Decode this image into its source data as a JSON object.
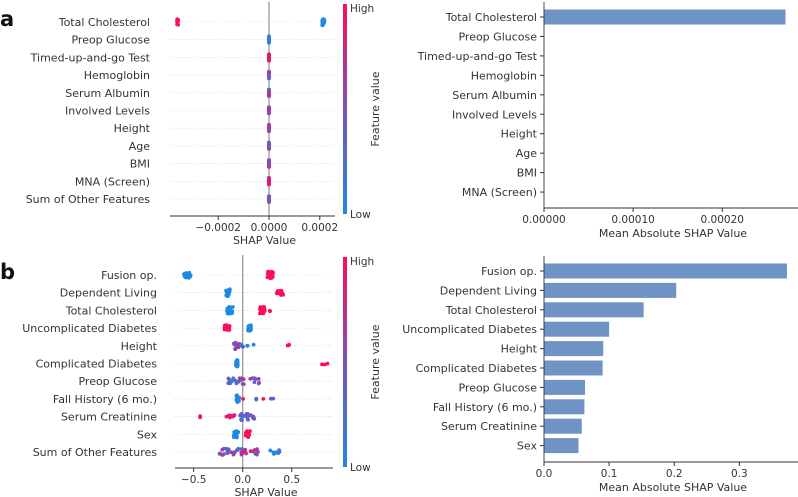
{
  "colors": {
    "high": "#ff0d57",
    "low": "#1e88e5",
    "bar": "#6f93c5",
    "zero_line": "#999999",
    "grid": "#cccccc"
  },
  "chart_data": [
    {
      "panel": "a",
      "type": "scatter",
      "subtype": "beeswarm",
      "xlabel": "SHAP Value",
      "xticks": [
        -0.0002,
        0.0,
        0.0002
      ],
      "xtick_labels": [
        "−0.0002",
        "0.0000",
        "0.0002"
      ],
      "xlim": [
        -0.00039,
        0.00026
      ],
      "colorbar": {
        "label": "Feature value",
        "high": "High",
        "low": "Low"
      },
      "features": [
        {
          "name": "Total Cholesterol",
          "clusters": [
            {
              "x": -0.00036,
              "spread": 5e-06,
              "n": 14,
              "level": 1
            },
            {
              "x": 0.000214,
              "spread": 1e-05,
              "n": 22,
              "level": 0
            }
          ]
        },
        {
          "name": "Preop Glucose",
          "clusters": [
            {
              "x": 0,
              "spread": 0,
              "n": 20,
              "level": 0.2
            }
          ]
        },
        {
          "name": "Timed-up-and-go Test",
          "clusters": [
            {
              "x": 0,
              "spread": 0,
              "n": 20,
              "level": 0.9
            }
          ]
        },
        {
          "name": "Hemoglobin",
          "clusters": [
            {
              "x": 0,
              "spread": 0,
              "n": 20,
              "level": 0.5
            }
          ]
        },
        {
          "name": "Serum Albumin",
          "clusters": [
            {
              "x": 0,
              "spread": 0,
              "n": 20,
              "level": 0.6
            }
          ]
        },
        {
          "name": "Involved Levels",
          "clusters": [
            {
              "x": 0,
              "spread": 0,
              "n": 20,
              "level": 0.5
            }
          ]
        },
        {
          "name": "Height",
          "clusters": [
            {
              "x": 0,
              "spread": 0,
              "n": 20,
              "level": 0.6
            }
          ]
        },
        {
          "name": "Age",
          "clusters": [
            {
              "x": 0,
              "spread": 0,
              "n": 20,
              "level": 0.5
            }
          ]
        },
        {
          "name": "BMI",
          "clusters": [
            {
              "x": 0,
              "spread": 0,
              "n": 20,
              "level": 0.6
            }
          ]
        },
        {
          "name": "MNA (Screen)",
          "clusters": [
            {
              "x": 0,
              "spread": 0,
              "n": 20,
              "level": 0.7
            }
          ]
        },
        {
          "name": "Sum of Other Features",
          "clusters": [
            {
              "x": 0,
              "spread": 0,
              "n": 20,
              "level": 0.4
            }
          ]
        }
      ]
    },
    {
      "panel": "a",
      "type": "bar",
      "orientation": "horizontal",
      "xlabel": "Mean Absolute SHAP Value",
      "xticks": [
        0,
        0.0001,
        0.0002
      ],
      "xtick_labels": [
        "0.00000",
        "0.00010",
        "0.00020"
      ],
      "xlim": [
        0,
        0.000285
      ],
      "categories": [
        "Total Cholesterol",
        "Preop Glucose",
        "Timed-up-and-go Test",
        "Hemoglobin",
        "Serum Albumin",
        "Involved Levels",
        "Height",
        "Age",
        "BMI",
        "MNA (Screen)"
      ],
      "values": [
        0.000271,
        0,
        0,
        0,
        0,
        0,
        0,
        0,
        0,
        0
      ]
    },
    {
      "panel": "b",
      "type": "scatter",
      "subtype": "beeswarm",
      "xlabel": "SHAP Value",
      "xticks": [
        -0.5,
        0.0,
        0.5
      ],
      "xtick_labels": [
        "−0.5",
        "0.0",
        "0.5"
      ],
      "xlim": [
        -0.69,
        0.92
      ],
      "colorbar": {
        "label": "Feature value",
        "high": "High",
        "low": "Low"
      },
      "features": [
        {
          "name": "Fusion op.",
          "clusters": [
            {
              "x": -0.56,
              "spread": 0.08,
              "n": 14,
              "level": 0
            },
            {
              "x": 0.28,
              "spread": 0.06,
              "n": 24,
              "level": 1
            }
          ]
        },
        {
          "name": "Dependent Living",
          "clusters": [
            {
              "x": -0.15,
              "spread": 0.04,
              "n": 22,
              "level": 0
            },
            {
              "x": 0.38,
              "spread": 0.07,
              "n": 12,
              "level": 1
            }
          ]
        },
        {
          "name": "Total Cholesterol",
          "clusters": [
            {
              "x": -0.13,
              "spread": 0.06,
              "n": 24,
              "level": 0
            },
            {
              "x": 0.2,
              "spread": 0.05,
              "n": 18,
              "level": 1
            },
            {
              "x": 0.27,
              "spread": 0.02,
              "n": 2,
              "level": 1
            }
          ]
        },
        {
          "name": "Uncomplicated Diabetes",
          "clusters": [
            {
              "x": -0.16,
              "spread": 0.06,
              "n": 14,
              "level": 1
            },
            {
              "x": 0.07,
              "spread": 0.03,
              "n": 20,
              "level": 0
            }
          ]
        },
        {
          "name": "Height",
          "clusters": [
            {
              "x": -0.06,
              "spread": 0.06,
              "n": 18,
              "level": 0.55
            },
            {
              "x": 0.05,
              "spread": 0.16,
              "n": 6,
              "level": 0.2
            },
            {
              "x": 0.46,
              "spread": 0.08,
              "n": 3,
              "level": 1
            }
          ]
        },
        {
          "name": "Complicated Diabetes",
          "clusters": [
            {
              "x": -0.06,
              "spread": 0.02,
              "n": 22,
              "level": 0
            },
            {
              "x": 0.8,
              "spread": 0.15,
              "n": 3,
              "level": 1
            }
          ]
        },
        {
          "name": "Preop Glucose",
          "clusters": [
            {
              "x": -0.08,
              "spread": 0.14,
              "n": 14,
              "level": 0.3
            },
            {
              "x": 0.06,
              "spread": 0.22,
              "n": 16,
              "level": 0.6
            }
          ]
        },
        {
          "name": "Fall History (6 mo.)",
          "clusters": [
            {
              "x": -0.05,
              "spread": 0.03,
              "n": 18,
              "level": 0
            },
            {
              "x": 0.0,
              "spread": 0.01,
              "n": 1,
              "level": 1
            },
            {
              "x": 0.14,
              "spread": 0.02,
              "n": 2,
              "level": 0.3
            },
            {
              "x": 0.21,
              "spread": 0.01,
              "n": 1,
              "level": 1
            },
            {
              "x": 0.3,
              "spread": 0.03,
              "n": 2,
              "level": 0.5
            }
          ]
        },
        {
          "name": "Serum Creatinine",
          "clusters": [
            {
              "x": -0.41,
              "spread": 0.1,
              "n": 2,
              "level": 1
            },
            {
              "x": -0.12,
              "spread": 0.12,
              "n": 8,
              "level": 0.9
            },
            {
              "x": 0.04,
              "spread": 0.16,
              "n": 22,
              "level": 0.4
            }
          ]
        },
        {
          "name": "Sex",
          "clusters": [
            {
              "x": -0.07,
              "spread": 0.05,
              "n": 16,
              "level": 0
            },
            {
              "x": 0.05,
              "spread": 0.05,
              "n": 16,
              "level": 1
            }
          ]
        },
        {
          "name": "Sum of Other Features",
          "clusters": [
            {
              "x": -0.12,
              "spread": 0.26,
              "n": 22,
              "level": 0.4
            },
            {
              "x": 0.07,
              "spread": 0.18,
              "n": 14,
              "level": 0.7
            },
            {
              "x": 0.33,
              "spread": 0.12,
              "n": 8,
              "level": 0.2
            }
          ]
        }
      ]
    },
    {
      "panel": "b",
      "type": "bar",
      "orientation": "horizontal",
      "xlabel": "Mean Absolute SHAP Value",
      "xticks": [
        0,
        0.1,
        0.2,
        0.3
      ],
      "xtick_labels": [
        "0.0",
        "0.1",
        "0.2",
        "0.3"
      ],
      "xlim": [
        0,
        0.39
      ],
      "categories": [
        "Fusion op.",
        "Dependent Living",
        "Total Cholesterol",
        "Uncomplicated Diabetes",
        "Height",
        "Complicated Diabetes",
        "Preop Glucose",
        "Fall History (6 mo.)",
        "Serum Creatinine",
        "Sex"
      ],
      "values": [
        0.373,
        0.203,
        0.153,
        0.1,
        0.091,
        0.09,
        0.063,
        0.062,
        0.058,
        0.053
      ]
    }
  ]
}
